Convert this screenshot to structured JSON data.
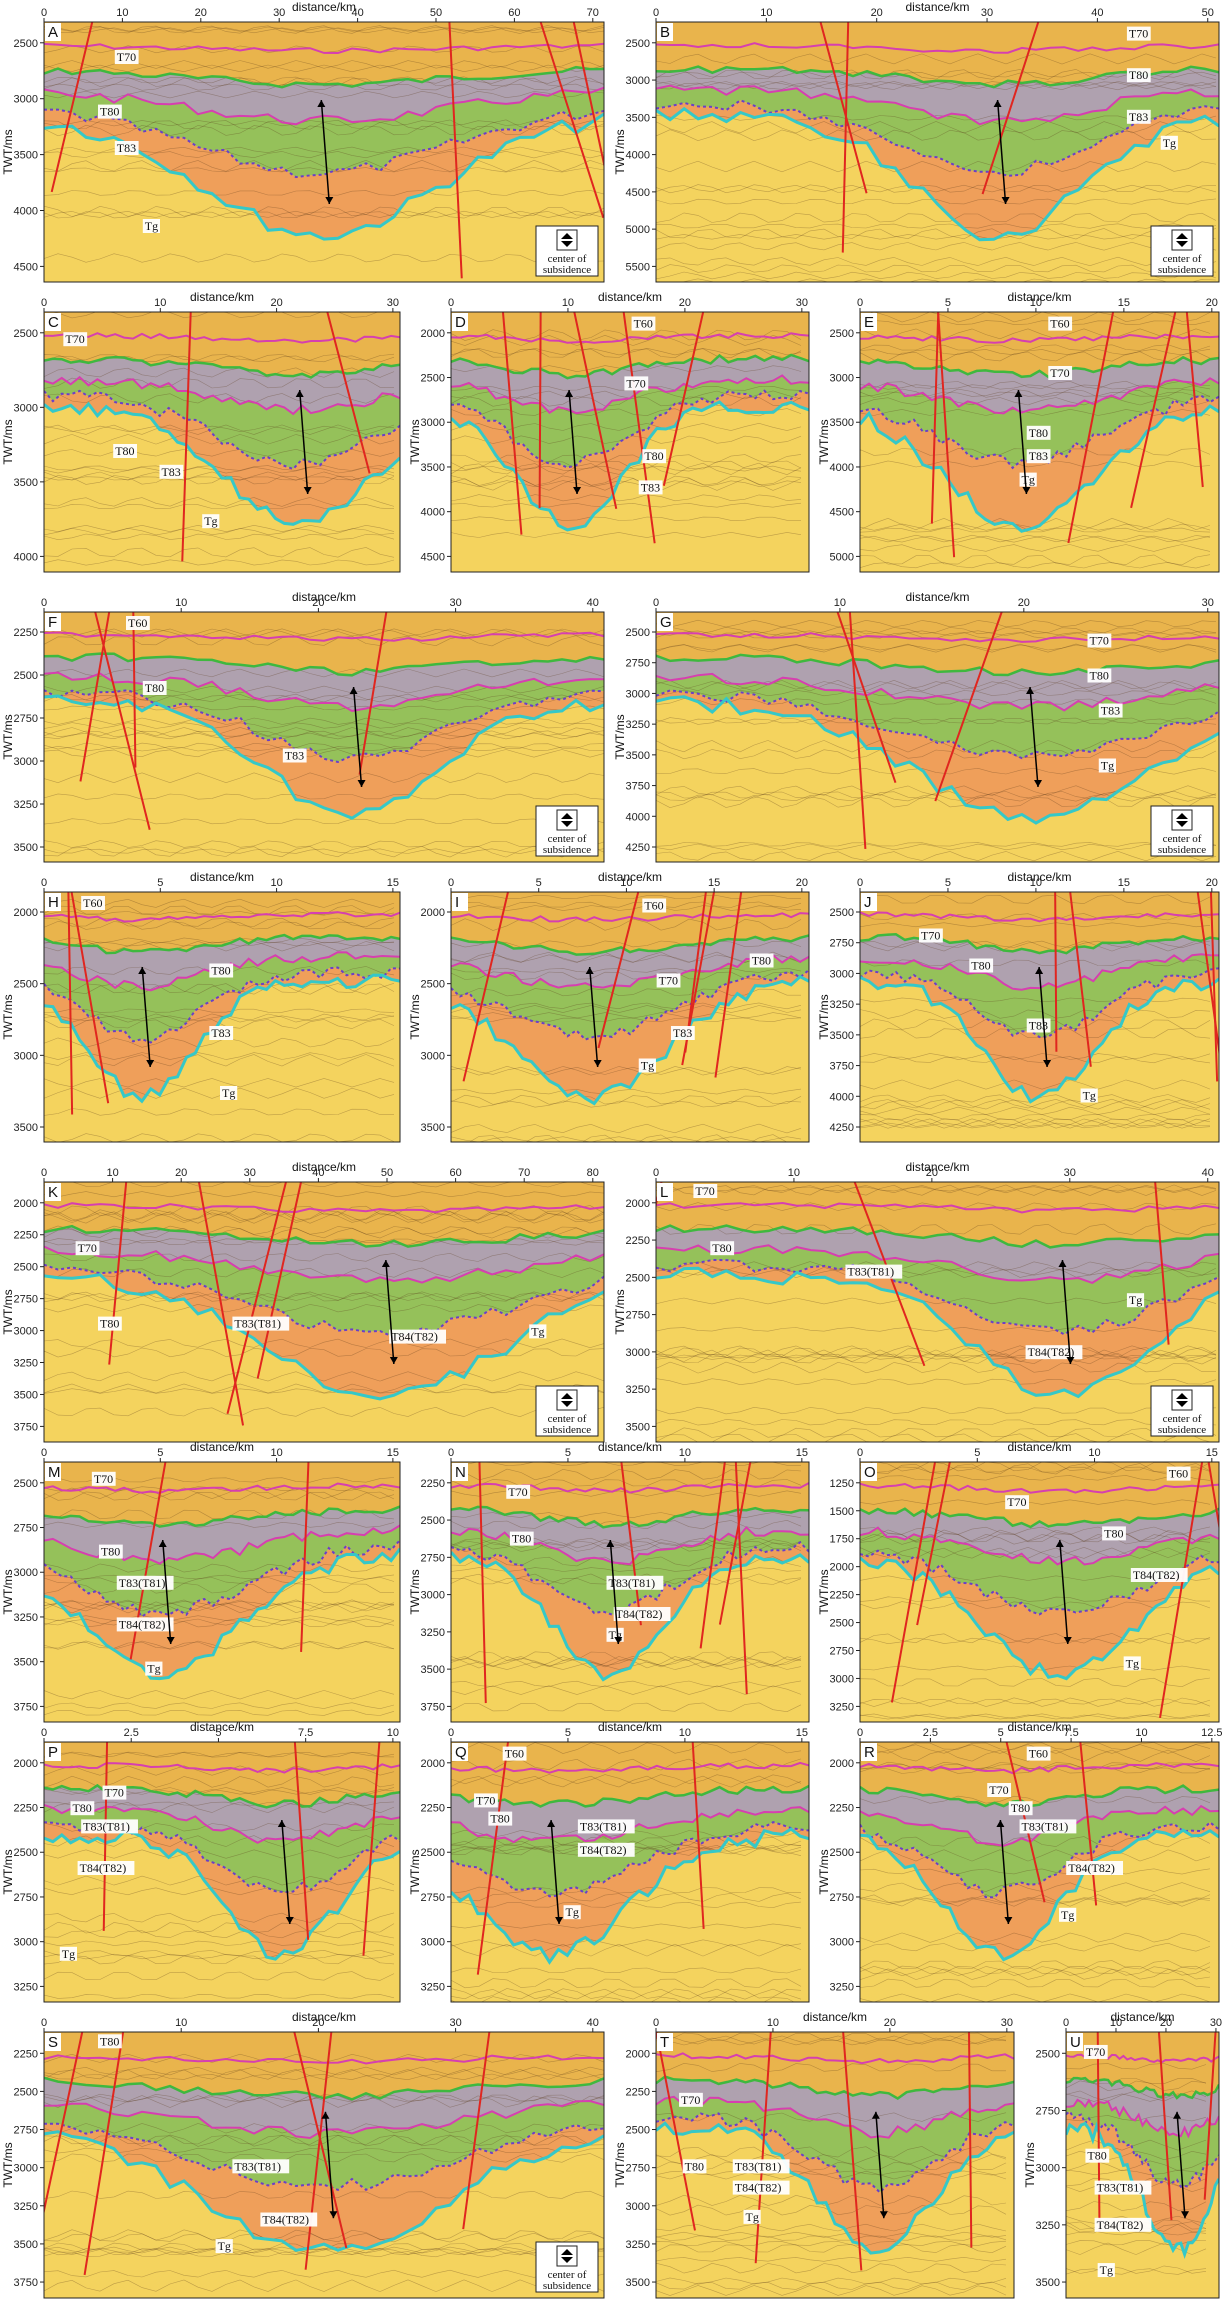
{
  "axis_labels": {
    "x": "distance/km",
    "y": "TWT/ms"
  },
  "legend": {
    "label": "center of subsidence"
  },
  "colors": {
    "basement": "#f4d35e",
    "upper": "#e9b44c",
    "grey_unit": "#a79bb8",
    "green_unit": "#8bbf5a",
    "orange_unit": "#ee9a5a",
    "T60": "#d63fb0",
    "T70": "#3fb83f",
    "T80": "#d63fb0",
    "T83": "#6a3fc8",
    "Tg": "#35c8c8",
    "fault": "#e0261f",
    "arrow": "#000000"
  },
  "panels": [
    {
      "id": "A",
      "xticks": [
        "0",
        "10",
        "20",
        "30",
        "40",
        "50",
        "60",
        "70"
      ],
      "yticks": [
        "2500",
        "3000",
        "3500",
        "4000",
        "4500"
      ],
      "horizons": [
        {
          "name": "T70",
          "fx": 0.13,
          "fy": 0.15
        },
        {
          "name": "T80",
          "fx": 0.1,
          "fy": 0.36
        },
        {
          "name": "T83",
          "fx": 0.13,
          "fy": 0.5
        },
        {
          "name": "Tg",
          "fx": 0.18,
          "fy": 0.8
        }
      ],
      "legend": true
    },
    {
      "id": "B",
      "xticks": [
        "0",
        "10",
        "20",
        "30",
        "40",
        "50"
      ],
      "yticks": [
        "2500",
        "3000",
        "3500",
        "4000",
        "4500",
        "5000",
        "5500"
      ],
      "horizons": [
        {
          "name": "T70",
          "fx": 0.84,
          "fy": 0.06
        },
        {
          "name": "T80",
          "fx": 0.84,
          "fy": 0.22
        },
        {
          "name": "T83",
          "fx": 0.84,
          "fy": 0.38
        },
        {
          "name": "Tg",
          "fx": 0.9,
          "fy": 0.48
        }
      ],
      "legend": true
    },
    {
      "id": "C",
      "xticks": [
        "0",
        "10",
        "20",
        "30"
      ],
      "yticks": [
        "2500",
        "3000",
        "3500",
        "4000"
      ],
      "horizons": [
        {
          "name": "T70",
          "fx": 0.06,
          "fy": 0.12
        },
        {
          "name": "T80",
          "fx": 0.2,
          "fy": 0.55
        },
        {
          "name": "T83",
          "fx": 0.33,
          "fy": 0.63
        },
        {
          "name": "Tg",
          "fx": 0.45,
          "fy": 0.82
        }
      ],
      "legend": false
    },
    {
      "id": "D",
      "xticks": [
        "0",
        "10",
        "20",
        "30"
      ],
      "yticks": [
        "2000",
        "2500",
        "3000",
        "3500",
        "4000",
        "4500"
      ],
      "horizons": [
        {
          "name": "T60",
          "fx": 0.51,
          "fy": 0.06
        },
        {
          "name": "T70",
          "fx": 0.49,
          "fy": 0.29
        },
        {
          "name": "T80",
          "fx": 0.54,
          "fy": 0.57
        },
        {
          "name": "T83",
          "fx": 0.53,
          "fy": 0.69
        }
      ],
      "legend": false
    },
    {
      "id": "E",
      "xticks": [
        "0",
        "5",
        "10",
        "15",
        "20"
      ],
      "yticks": [
        "2500",
        "3000",
        "3500",
        "4000",
        "4500",
        "5000"
      ],
      "horizons": [
        {
          "name": "T60",
          "fx": 0.53,
          "fy": 0.06
        },
        {
          "name": "T70",
          "fx": 0.53,
          "fy": 0.25
        },
        {
          "name": "T80",
          "fx": 0.47,
          "fy": 0.48
        },
        {
          "name": "T83",
          "fx": 0.47,
          "fy": 0.57
        },
        {
          "name": "Tg",
          "fx": 0.45,
          "fy": 0.66
        }
      ],
      "legend": false
    },
    {
      "id": "F",
      "xticks": [
        "0",
        "10",
        "20",
        "30",
        "40"
      ],
      "yticks": [
        "2250",
        "2500",
        "2750",
        "3000",
        "3250",
        "3500"
      ],
      "horizons": [
        {
          "name": "T60",
          "fx": 0.15,
          "fy": 0.06
        },
        {
          "name": "T80",
          "fx": 0.18,
          "fy": 0.32
        },
        {
          "name": "T83",
          "fx": 0.43,
          "fy": 0.59
        }
      ],
      "legend": true
    },
    {
      "id": "G",
      "xticks": [
        "0",
        "10",
        "20",
        "30"
      ],
      "yticks": [
        "2500",
        "2750",
        "3000",
        "3250",
        "3500",
        "3750",
        "4000",
        "4250"
      ],
      "horizons": [
        {
          "name": "T70",
          "fx": 0.77,
          "fy": 0.13
        },
        {
          "name": "T80",
          "fx": 0.77,
          "fy": 0.27
        },
        {
          "name": "T83",
          "fx": 0.79,
          "fy": 0.41
        },
        {
          "name": "Tg",
          "fx": 0.79,
          "fy": 0.63
        }
      ],
      "legend": true
    },
    {
      "id": "H",
      "xticks": [
        "0",
        "5",
        "10",
        "15"
      ],
      "yticks": [
        "2000",
        "2500",
        "3000",
        "3500"
      ],
      "horizons": [
        {
          "name": "T60",
          "fx": 0.11,
          "fy": 0.06
        },
        {
          "name": "T80",
          "fx": 0.47,
          "fy": 0.33
        },
        {
          "name": "T83",
          "fx": 0.47,
          "fy": 0.58
        },
        {
          "name": "Tg",
          "fx": 0.5,
          "fy": 0.82
        }
      ],
      "legend": false
    },
    {
      "id": "I",
      "xticks": [
        "0",
        "5",
        "10",
        "15",
        "20"
      ],
      "yticks": [
        "2000",
        "2500",
        "3000",
        "3500"
      ],
      "horizons": [
        {
          "name": "T60",
          "fx": 0.54,
          "fy": 0.07
        },
        {
          "name": "T70",
          "fx": 0.58,
          "fy": 0.37
        },
        {
          "name": "T80",
          "fx": 0.84,
          "fy": 0.29
        },
        {
          "name": "T83",
          "fx": 0.62,
          "fy": 0.58
        },
        {
          "name": "Tg",
          "fx": 0.53,
          "fy": 0.71
        }
      ],
      "legend": false
    },
    {
      "id": "J",
      "xticks": [
        "0",
        "5",
        "10",
        "15",
        "20"
      ],
      "yticks": [
        "2500",
        "2750",
        "3000",
        "3250",
        "3500",
        "3750",
        "4000",
        "4250"
      ],
      "horizons": [
        {
          "name": "T70",
          "fx": 0.17,
          "fy": 0.19
        },
        {
          "name": "T80",
          "fx": 0.31,
          "fy": 0.31
        },
        {
          "name": "T83",
          "fx": 0.47,
          "fy": 0.55
        },
        {
          "name": "Tg",
          "fx": 0.62,
          "fy": 0.83
        }
      ],
      "legend": false
    },
    {
      "id": "K",
      "xticks": [
        "0",
        "10",
        "20",
        "30",
        "40",
        "50",
        "60",
        "70",
        "80"
      ],
      "yticks": [
        "2000",
        "2250",
        "2500",
        "2750",
        "3000",
        "3250",
        "3500",
        "3750"
      ],
      "horizons": [
        {
          "name": "T70",
          "fx": 0.06,
          "fy": 0.27
        },
        {
          "name": "T80",
          "fx": 0.1,
          "fy": 0.56
        },
        {
          "name": "T83(T81)",
          "fx": 0.34,
          "fy": 0.56
        },
        {
          "name": "T84(T82)",
          "fx": 0.62,
          "fy": 0.61
        },
        {
          "name": "Tg",
          "fx": 0.87,
          "fy": 0.59
        }
      ],
      "legend": true
    },
    {
      "id": "L",
      "xticks": [
        "0",
        "10",
        "20",
        "30",
        "40"
      ],
      "yticks": [
        "2000",
        "2250",
        "2500",
        "2750",
        "3000",
        "3250",
        "3500"
      ],
      "horizons": [
        {
          "name": "T70",
          "fx": 0.07,
          "fy": 0.05
        },
        {
          "name": "T80",
          "fx": 0.1,
          "fy": 0.27
        },
        {
          "name": "T83(T81)",
          "fx": 0.34,
          "fy": 0.36
        },
        {
          "name": "T84(T82)",
          "fx": 0.66,
          "fy": 0.67
        },
        {
          "name": "Tg",
          "fx": 0.84,
          "fy": 0.47
        }
      ],
      "legend": true
    },
    {
      "id": "M",
      "xticks": [
        "0",
        "5",
        "10",
        "15"
      ],
      "yticks": [
        "2500",
        "2750",
        "3000",
        "3250",
        "3500",
        "3750"
      ],
      "horizons": [
        {
          "name": "T70",
          "fx": 0.14,
          "fy": 0.08
        },
        {
          "name": "T80",
          "fx": 0.16,
          "fy": 0.36
        },
        {
          "name": "T83(T81)",
          "fx": 0.21,
          "fy": 0.48
        },
        {
          "name": "T84(T82)",
          "fx": 0.21,
          "fy": 0.64
        },
        {
          "name": "Tg",
          "fx": 0.29,
          "fy": 0.81
        }
      ],
      "legend": false
    },
    {
      "id": "N",
      "xticks": [
        "0",
        "5",
        "10",
        "15"
      ],
      "yticks": [
        "2250",
        "2500",
        "2750",
        "3000",
        "3250",
        "3500",
        "3750"
      ],
      "horizons": [
        {
          "name": "T70",
          "fx": 0.16,
          "fy": 0.13
        },
        {
          "name": "T80",
          "fx": 0.17,
          "fy": 0.31
        },
        {
          "name": "T83(T81)",
          "fx": 0.44,
          "fy": 0.48
        },
        {
          "name": "T84(T82)",
          "fx": 0.46,
          "fy": 0.6
        },
        {
          "name": "Tg",
          "fx": 0.44,
          "fy": 0.68
        }
      ],
      "legend": false
    },
    {
      "id": "O",
      "xticks": [
        "0",
        "5",
        "10",
        "15"
      ],
      "yticks": [
        "1250",
        "1500",
        "1750",
        "2000",
        "2250",
        "2500",
        "2750",
        "3000",
        "3250"
      ],
      "horizons": [
        {
          "name": "T60",
          "fx": 0.86,
          "fy": 0.06
        },
        {
          "name": "T70",
          "fx": 0.41,
          "fy": 0.17
        },
        {
          "name": "T80",
          "fx": 0.68,
          "fy": 0.29
        },
        {
          "name": "T84(T82)",
          "fx": 0.76,
          "fy": 0.45
        },
        {
          "name": "Tg",
          "fx": 0.74,
          "fy": 0.79
        }
      ],
      "legend": false
    },
    {
      "id": "P",
      "xticks": [
        "0",
        "2.5",
        "5",
        "7.5",
        "10"
      ],
      "yticks": [
        "2000",
        "2250",
        "2500",
        "2750",
        "3000",
        "3250"
      ],
      "horizons": [
        {
          "name": "T70",
          "fx": 0.17,
          "fy": 0.21
        },
        {
          "name": "T80",
          "fx": 0.08,
          "fy": 0.27
        },
        {
          "name": "T83(T81)",
          "fx": 0.11,
          "fy": 0.34
        },
        {
          "name": "T84(T82)",
          "fx": 0.1,
          "fy": 0.5
        },
        {
          "name": "Tg",
          "fx": 0.05,
          "fy": 0.83
        }
      ],
      "legend": false
    },
    {
      "id": "Q",
      "xticks": [
        "0",
        "5",
        "10",
        "15"
      ],
      "yticks": [
        "2000",
        "2250",
        "2500",
        "2750",
        "3000",
        "3250"
      ],
      "horizons": [
        {
          "name": "T60",
          "fx": 0.15,
          "fy": 0.06
        },
        {
          "name": "T70",
          "fx": 0.07,
          "fy": 0.24
        },
        {
          "name": "T80",
          "fx": 0.11,
          "fy": 0.31
        },
        {
          "name": "T83(T81)",
          "fx": 0.36,
          "fy": 0.34
        },
        {
          "name": "T84(T82)",
          "fx": 0.36,
          "fy": 0.43
        },
        {
          "name": "Tg",
          "fx": 0.32,
          "fy": 0.67
        }
      ],
      "legend": false
    },
    {
      "id": "R",
      "xticks": [
        "0",
        "2.5",
        "5",
        "7.5",
        "10",
        "12.5"
      ],
      "yticks": [
        "2000",
        "2250",
        "2500",
        "2750",
        "3000",
        "3250"
      ],
      "horizons": [
        {
          "name": "T60",
          "fx": 0.47,
          "fy": 0.06
        },
        {
          "name": "T70",
          "fx": 0.36,
          "fy": 0.2
        },
        {
          "name": "T80",
          "fx": 0.42,
          "fy": 0.27
        },
        {
          "name": "T83(T81)",
          "fx": 0.45,
          "fy": 0.34
        },
        {
          "name": "T84(T82)",
          "fx": 0.58,
          "fy": 0.5
        },
        {
          "name": "Tg",
          "fx": 0.56,
          "fy": 0.68
        }
      ],
      "legend": false
    },
    {
      "id": "S",
      "xticks": [
        "0",
        "10",
        "20",
        "30",
        "40"
      ],
      "yticks": [
        "2250",
        "2500",
        "2750",
        "3000",
        "3250",
        "3500",
        "3750"
      ],
      "horizons": [
        {
          "name": "T80",
          "fx": 0.1,
          "fy": 0.05
        },
        {
          "name": "T83(T81)",
          "fx": 0.34,
          "fy": 0.52
        },
        {
          "name": "T84(T82)",
          "fx": 0.39,
          "fy": 0.72
        },
        {
          "name": "Tg",
          "fx": 0.31,
          "fy": 0.82
        }
      ],
      "legend": true
    },
    {
      "id": "T",
      "xticks": [
        "0",
        "10",
        "20",
        "30"
      ],
      "yticks": [
        "2000",
        "2250",
        "2500",
        "2750",
        "3000",
        "3250",
        "3500"
      ],
      "horizons": [
        {
          "name": "T70",
          "fx": 0.07,
          "fy": 0.27
        },
        {
          "name": "T80",
          "fx": 0.08,
          "fy": 0.52
        },
        {
          "name": "T83(T81)",
          "fx": 0.22,
          "fy": 0.52
        },
        {
          "name": "T84(T82)",
          "fx": 0.22,
          "fy": 0.6
        },
        {
          "name": "Tg",
          "fx": 0.25,
          "fy": 0.71
        }
      ],
      "legend": false
    },
    {
      "id": "U",
      "xticks": [
        "0",
        "10",
        "20",
        "30"
      ],
      "yticks": [
        "2500",
        "2750",
        "3000",
        "3250",
        "3500"
      ],
      "horizons": [
        {
          "name": "T70",
          "fx": 0.13,
          "fy": 0.09
        },
        {
          "name": "T80",
          "fx": 0.14,
          "fy": 0.48
        },
        {
          "name": "T83(T81)",
          "fx": 0.2,
          "fy": 0.6
        },
        {
          "name": "T84(T82)",
          "fx": 0.2,
          "fy": 0.74
        },
        {
          "name": "Tg",
          "fx": 0.22,
          "fy": 0.91
        }
      ],
      "legend": false
    }
  ]
}
